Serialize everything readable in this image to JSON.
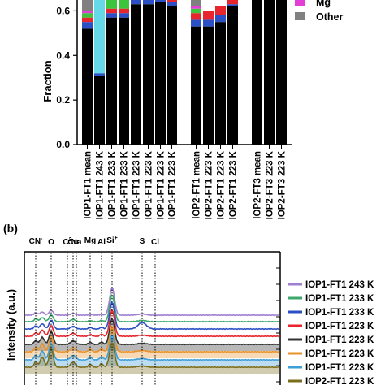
{
  "chart_data": [
    {
      "type": "bar",
      "stacked": true,
      "panel_label": "",
      "ylabel": "Fraction",
      "ylim": [
        0.0,
        0.7
      ],
      "yticks": [
        "0.0",
        "0.2",
        "0.4",
        "0.6"
      ],
      "grid": false,
      "legend_position": "top-right",
      "legend_visible": [
        "Mg",
        "Other"
      ],
      "categories": [
        "IOP1-FT1 mean",
        "IOP1-FT1 243 K",
        "IOP1-FT1 233 K",
        "IOP1-FT1 233 K",
        "IOP1-FT1 223 K",
        "IOP1-FT1 223 K",
        "IOP1-FT1 223 K",
        "IOP1-FT1 223 K",
        "IOP2-FT1 mean",
        "IOP2-FT1 223 K",
        "IOP2-FT1 223 K",
        "IOP2-FT1 223 K",
        "IOP2-FT3 mean",
        "IOP2-FT3 223 K",
        "IOP2-FT3 223 K"
      ],
      "series": [
        {
          "name": "",
          "color": "#000000",
          "values": [
            0.52,
            0.31,
            0.57,
            0.57,
            0.63,
            0.63,
            0.64,
            0.62,
            0.53,
            0.53,
            0.55,
            0.62,
            0.7,
            0.7,
            0.7
          ]
        },
        {
          "name": "",
          "color": "#2b4fc4",
          "values": [
            0.03,
            0.01,
            0.02,
            0.02,
            0.02,
            0.02,
            0.01,
            0.02,
            0.03,
            0.03,
            0.03,
            0.01,
            0.0,
            0.0,
            0.0
          ]
        },
        {
          "name": "",
          "color": "#66d9e8",
          "values": [
            0.0,
            0.38,
            0.0,
            0.0,
            0.0,
            0.0,
            0.0,
            0.0,
            0.0,
            0.0,
            0.0,
            0.0,
            0.0,
            0.0,
            0.0
          ]
        },
        {
          "name": "",
          "color": "#e8242c",
          "values": [
            0.02,
            0.0,
            0.02,
            0.02,
            0.02,
            0.02,
            0.02,
            0.02,
            0.03,
            0.04,
            0.04,
            0.03,
            0.0,
            0.0,
            0.0
          ]
        },
        {
          "name": "",
          "color": "#3cc43c",
          "values": [
            0.02,
            0.0,
            0.05,
            0.05,
            0.02,
            0.02,
            0.02,
            0.03,
            0.02,
            0.0,
            0.0,
            0.02,
            0.0,
            0.0,
            0.0
          ]
        },
        {
          "name": "Mg",
          "color": "#e33fd6",
          "values": [
            0.01,
            0.0,
            0.0,
            0.0,
            0.01,
            0.01,
            0.01,
            0.01,
            0.01,
            0.0,
            0.0,
            0.01,
            0.0,
            0.0,
            0.0
          ]
        },
        {
          "name": "Other",
          "color": "#808080",
          "values": [
            0.1,
            0.0,
            0.06,
            0.06,
            0.02,
            0.02,
            0.02,
            0.02,
            0.08,
            0.0,
            0.0,
            0.01,
            0.0,
            0.0,
            0.0
          ]
        }
      ]
    },
    {
      "type": "line",
      "panel_label": "(b)",
      "ylabel": "Intensity (a.u.)",
      "peak_labels": [
        "CN",
        "O",
        "C",
        "Cu",
        "Na",
        "Mg",
        "Al",
        "Si",
        "S",
        "Cl"
      ],
      "peak_label_marks": {
        "CN": "-",
        "C": "2",
        "Si": "+"
      },
      "legend_position": "right",
      "series": [
        {
          "name": "IOP1-FT1 243 K",
          "color": "#9f7fcf"
        },
        {
          "name": "IOP1-FT1 233 K",
          "color": "#3da86b"
        },
        {
          "name": "IOP1-FT1 233 K",
          "color": "#2b4fc4"
        },
        {
          "name": "IOP1-FT1 223 K",
          "color": "#e8242c"
        },
        {
          "name": "IOP1-FT1 223 K",
          "color": "#333333"
        },
        {
          "name": "IOP1-FT1 223 K",
          "color": "#e8922a"
        },
        {
          "name": "IOP1-FT1 223 K",
          "color": "#3e9fd6"
        },
        {
          "name": "IOP2-FT1 223 K",
          "color": "#7a6d1c"
        }
      ]
    }
  ]
}
